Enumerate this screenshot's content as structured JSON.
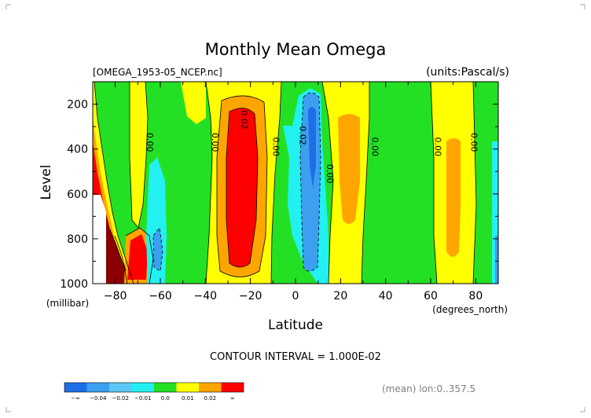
{
  "chart_data": {
    "type": "heatmap",
    "title": "Monthly Mean Omega",
    "subtitle_left": "[OMEGA_1953-05_NCEP.nc]",
    "subtitle_right": "(units:Pascal/s)",
    "xlabel": "Latitude",
    "xunits": "(degrees_north)",
    "ylabel": "Level",
    "yunits": "(millibar)",
    "xlim": [
      -90,
      90
    ],
    "ylim": [
      1000,
      100
    ],
    "x_ticks": [
      -80,
      -60,
      -40,
      -20,
      0,
      20,
      40,
      60,
      80
    ],
    "x_tick_labels": [
      "−80",
      "−60",
      "−40",
      "−20",
      "0",
      "20",
      "40",
      "60",
      "80"
    ],
    "y_ticks": [
      200,
      400,
      600,
      800,
      1000
    ],
    "y_tick_labels": [
      "200",
      "400",
      "600",
      "800",
      "1000"
    ],
    "contour_interval_text": "CONTOUR INTERVAL = 1.000E-02",
    "footer_text": "(mean) lon:0..357.5",
    "contour_labels": [
      {
        "text": "0.00",
        "x": -66,
        "y": 370
      },
      {
        "text": "0.00",
        "x": -37,
        "y": 370
      },
      {
        "text": "0.02",
        "x": -24,
        "y": 270
      },
      {
        "text": "0.00",
        "x": -10,
        "y": 390
      },
      {
        "text": "0.02",
        "x": 2,
        "y": 340
      },
      {
        "text": "0.00",
        "x": 14,
        "y": 510
      },
      {
        "text": "0.00",
        "x": 34,
        "y": 390
      },
      {
        "text": "0.00",
        "x": 62,
        "y": 390
      },
      {
        "text": "0.00",
        "x": 78,
        "y": 370
      }
    ],
    "legend": {
      "bins": [
        {
          "color": "#1e6ee6",
          "label": "−∞"
        },
        {
          "color": "#3c9ff0",
          "label": "−0.04"
        },
        {
          "color": "#5dc8f5",
          "label": "−0.02"
        },
        {
          "color": "#23f0f0",
          "label": "−0.01"
        },
        {
          "color": "#24e024",
          "label": "0.0"
        },
        {
          "color": "#ffff00",
          "label": "0.01"
        },
        {
          "color": "#ffa500",
          "label": "0.02"
        },
        {
          "color": "#ff0000",
          "label": "∞"
        }
      ]
    },
    "colors": {
      "background_field": "#24e024",
      "weak_positive": "#ffff00",
      "moderate_positive": "#ffa500",
      "strong_positive": "#ff0000",
      "very_strong_positive": "#8b0000",
      "weak_negative": "#23f0f0",
      "moderate_negative": "#3c9ff0",
      "strong_negative": "#1e6ee6",
      "missing": "#ffffff"
    }
  }
}
